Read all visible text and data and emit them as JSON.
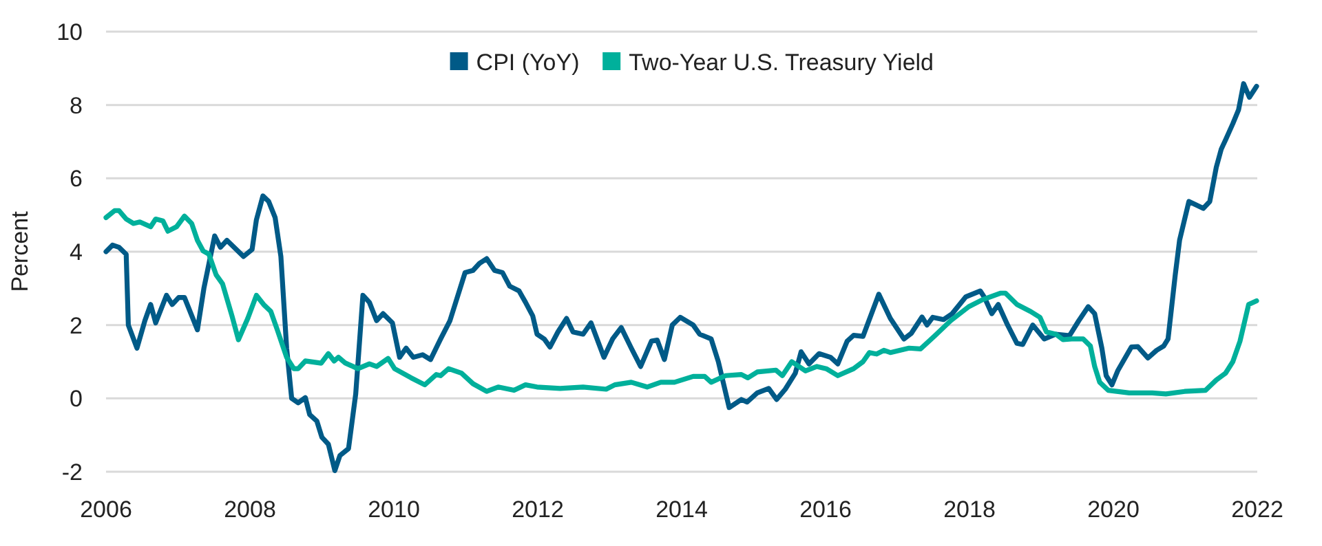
{
  "chart_data": {
    "type": "line",
    "ylabel": "Percent",
    "xlim": [
      2006,
      2022
    ],
    "xticks": [
      2006,
      2008,
      2010,
      2012,
      2014,
      2016,
      2018,
      2020,
      2022
    ],
    "ylim": [
      -2,
      10
    ],
    "yticks": [
      -2,
      0,
      2,
      4,
      6,
      8,
      10
    ],
    "grid": "y",
    "legend": "top",
    "marker": "none",
    "line_style": "solid",
    "series": [
      {
        "name": "CPI (YoY)",
        "color": "#005a87",
        "x": [
          2006.0,
          2006.09,
          2006.18,
          2006.28,
          2006.31,
          2006.43,
          2006.54,
          2006.62,
          2006.69,
          2006.84,
          2006.92,
          2007.01,
          2007.09,
          2007.27,
          2007.36,
          2007.51,
          2007.59,
          2007.68,
          2007.91,
          2008.03,
          2008.09,
          2008.18,
          2008.26,
          2008.35,
          2008.43,
          2008.51,
          2008.58,
          2008.67,
          2008.77,
          2008.83,
          2008.93,
          2009.0,
          2009.09,
          2009.18,
          2009.25,
          2009.37,
          2009.47,
          2009.57,
          2009.66,
          2009.76,
          2009.85,
          2009.98,
          2010.08,
          2010.17,
          2010.27,
          2010.4,
          2010.51,
          2010.65,
          2010.78,
          2010.99,
          2011.1,
          2011.19,
          2011.29,
          2011.4,
          2011.51,
          2011.61,
          2011.74,
          2011.83,
          2011.93,
          2011.99,
          2012.09,
          2012.17,
          2012.28,
          2012.4,
          2012.49,
          2012.63,
          2012.74,
          2012.92,
          2013.04,
          2013.16,
          2013.3,
          2013.43,
          2013.58,
          2013.66,
          2013.76,
          2013.87,
          2013.98,
          2014.16,
          2014.25,
          2014.41,
          2014.51,
          2014.66,
          2014.83,
          2014.91,
          2015.05,
          2015.21,
          2015.32,
          2015.44,
          2015.58,
          2015.66,
          2015.77,
          2015.91,
          2016.07,
          2016.17,
          2016.3,
          2016.39,
          2016.52,
          2016.65,
          2016.74,
          2016.9,
          2017.09,
          2017.19,
          2017.34,
          2017.41,
          2017.49,
          2017.64,
          2017.76,
          2017.95,
          2018.15,
          2018.21,
          2018.31,
          2018.4,
          2018.53,
          2018.66,
          2018.74,
          2018.88,
          2019.04,
          2019.2,
          2019.39,
          2019.52,
          2019.65,
          2019.74,
          2019.84,
          2019.9,
          2019.98,
          2020.06,
          2020.25,
          2020.34,
          2020.48,
          2020.6,
          2020.7,
          2020.76,
          2020.86,
          2020.92,
          2021.05,
          2021.25,
          2021.34,
          2021.43,
          2021.5,
          2021.56,
          2021.66,
          2021.74,
          2021.81,
          2021.89,
          2021.99
        ],
        "values": [
          4.0,
          4.18,
          4.12,
          3.93,
          2.0,
          1.37,
          2.12,
          2.56,
          2.06,
          2.81,
          2.56,
          2.75,
          2.75,
          1.87,
          3.0,
          4.43,
          4.12,
          4.31,
          3.87,
          4.06,
          4.87,
          5.52,
          5.37,
          4.93,
          3.87,
          1.37,
          0.0,
          -0.12,
          0.02,
          -0.44,
          -0.62,
          -1.06,
          -1.25,
          -1.97,
          -1.56,
          -1.37,
          0.12,
          2.81,
          2.62,
          2.12,
          2.31,
          2.06,
          1.12,
          1.37,
          1.12,
          1.19,
          1.06,
          1.62,
          2.12,
          3.43,
          3.49,
          3.68,
          3.81,
          3.49,
          3.43,
          3.06,
          2.93,
          2.62,
          2.25,
          1.75,
          1.62,
          1.4,
          1.81,
          2.18,
          1.81,
          1.75,
          2.06,
          1.12,
          1.62,
          1.93,
          1.37,
          0.87,
          1.56,
          1.59,
          1.06,
          2.0,
          2.21,
          2.0,
          1.75,
          1.62,
          1.0,
          -0.25,
          -0.03,
          -0.1,
          0.15,
          0.27,
          -0.03,
          0.25,
          0.69,
          1.27,
          0.94,
          1.22,
          1.12,
          0.94,
          1.56,
          1.72,
          1.69,
          2.37,
          2.84,
          2.18,
          1.62,
          1.77,
          2.22,
          2.0,
          2.21,
          2.15,
          2.31,
          2.77,
          2.93,
          2.75,
          2.31,
          2.56,
          2.0,
          1.5,
          1.47,
          2.0,
          1.62,
          1.75,
          1.71,
          2.12,
          2.5,
          2.31,
          1.37,
          0.62,
          0.37,
          0.75,
          1.4,
          1.41,
          1.1,
          1.31,
          1.43,
          1.62,
          3.37,
          4.31,
          5.37,
          5.18,
          5.37,
          6.3,
          6.8,
          7.05,
          7.49,
          7.87,
          8.58,
          8.21,
          8.51
        ]
      },
      {
        "name": "Two-Year U.S. Treasury Yield",
        "color": "#00b09b",
        "x": [
          2006.0,
          2006.12,
          2006.18,
          2006.28,
          2006.38,
          2006.47,
          2006.62,
          2006.69,
          2006.79,
          2006.86,
          2006.98,
          2007.09,
          2007.19,
          2007.27,
          2007.35,
          2007.43,
          2007.53,
          2007.62,
          2007.75,
          2007.84,
          2007.97,
          2008.09,
          2008.19,
          2008.29,
          2008.38,
          2008.51,
          2008.61,
          2008.67,
          2008.77,
          2008.99,
          2009.09,
          2009.17,
          2009.23,
          2009.32,
          2009.5,
          2009.66,
          2009.76,
          2009.92,
          2010.01,
          2010.24,
          2010.43,
          2010.59,
          2010.65,
          2010.76,
          2010.94,
          2011.1,
          2011.29,
          2011.45,
          2011.67,
          2011.83,
          2011.99,
          2012.31,
          2012.63,
          2012.95,
          2013.07,
          2013.3,
          2013.52,
          2013.71,
          2013.9,
          2014.16,
          2014.32,
          2014.41,
          2014.61,
          2014.83,
          2014.92,
          2015.05,
          2015.31,
          2015.4,
          2015.53,
          2015.72,
          2015.88,
          2016.01,
          2016.17,
          2016.39,
          2016.52,
          2016.61,
          2016.71,
          2016.81,
          2016.9,
          2017.16,
          2017.32,
          2017.51,
          2017.74,
          2017.99,
          2018.18,
          2018.43,
          2018.5,
          2018.66,
          2018.85,
          2018.98,
          2019.07,
          2019.2,
          2019.3,
          2019.42,
          2019.58,
          2019.68,
          2019.74,
          2019.81,
          2019.93,
          2020.22,
          2020.54,
          2020.73,
          2020.99,
          2021.28,
          2021.43,
          2021.56,
          2021.66,
          2021.76,
          2021.88,
          2021.99
        ],
        "values": [
          4.93,
          5.12,
          5.12,
          4.89,
          4.77,
          4.81,
          4.68,
          4.89,
          4.84,
          4.56,
          4.68,
          4.97,
          4.77,
          4.31,
          4.02,
          3.93,
          3.37,
          3.12,
          2.25,
          1.6,
          2.18,
          2.81,
          2.56,
          2.37,
          1.87,
          1.12,
          0.81,
          0.81,
          1.02,
          0.96,
          1.22,
          1.02,
          1.12,
          0.97,
          0.81,
          0.94,
          0.87,
          1.09,
          0.81,
          0.56,
          0.37,
          0.65,
          0.62,
          0.81,
          0.69,
          0.4,
          0.19,
          0.31,
          0.22,
          0.37,
          0.31,
          0.27,
          0.31,
          0.25,
          0.37,
          0.44,
          0.31,
          0.44,
          0.44,
          0.6,
          0.6,
          0.44,
          0.62,
          0.65,
          0.56,
          0.72,
          0.77,
          0.62,
          1.0,
          0.75,
          0.87,
          0.81,
          0.62,
          0.81,
          1.0,
          1.25,
          1.21,
          1.31,
          1.25,
          1.37,
          1.35,
          1.69,
          2.12,
          2.5,
          2.69,
          2.87,
          2.87,
          2.56,
          2.37,
          2.21,
          1.81,
          1.75,
          1.6,
          1.62,
          1.62,
          1.43,
          0.87,
          0.44,
          0.22,
          0.15,
          0.15,
          0.12,
          0.19,
          0.22,
          0.5,
          0.69,
          1.0,
          1.56,
          2.56,
          2.66
        ]
      }
    ]
  }
}
